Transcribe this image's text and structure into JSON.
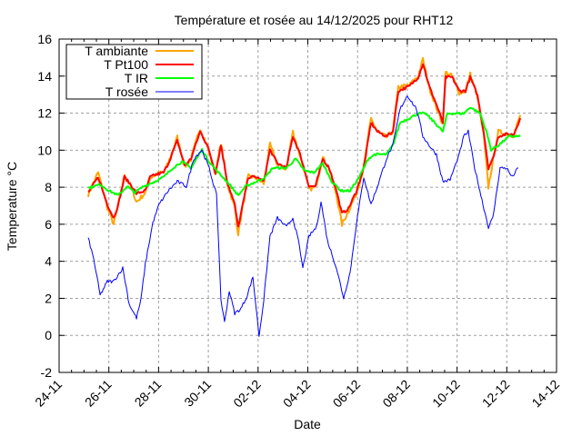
{
  "chart_data": {
    "type": "line",
    "title": "Température et rosée au 14/12/2025 pour RHT12",
    "xlabel": "Date",
    "ylabel": "Temperature °C",
    "x_unit": "days since 24-11 00:00",
    "xlim": [
      0,
      20
    ],
    "ylim": [
      -2,
      16
    ],
    "x_ticks": [
      "24-11",
      "26-11",
      "28-11",
      "30-11",
      "02-12",
      "04-12",
      "06-12",
      "08-12",
      "10-12",
      "12-12",
      "14-12"
    ],
    "y_ticks": [
      -2,
      0,
      2,
      4,
      6,
      8,
      10,
      12,
      14,
      16
    ],
    "grid": true,
    "legend_position": "top-left",
    "series": [
      {
        "name": "T ambiante",
        "color": "#ffa500",
        "points": [
          [
            1.17,
            7.6
          ],
          [
            1.57,
            8.8
          ],
          [
            1.94,
            6.9
          ],
          [
            2.19,
            6.0
          ],
          [
            2.38,
            7.0
          ],
          [
            2.63,
            8.7
          ],
          [
            2.93,
            7.9
          ],
          [
            3.11,
            7.2
          ],
          [
            3.47,
            7.7
          ],
          [
            3.66,
            8.5
          ],
          [
            3.91,
            8.7
          ],
          [
            4.2,
            8.8
          ],
          [
            4.39,
            9.3
          ],
          [
            4.75,
            10.7
          ],
          [
            5.05,
            9.1
          ],
          [
            5.3,
            9.5
          ],
          [
            5.67,
            11.2
          ],
          [
            5.96,
            10.2
          ],
          [
            6.29,
            8.7
          ],
          [
            6.51,
            10.4
          ],
          [
            6.76,
            8.2
          ],
          [
            7.06,
            6.9
          ],
          [
            7.2,
            5.5
          ],
          [
            7.35,
            6.7
          ],
          [
            7.61,
            8.6
          ],
          [
            7.93,
            8.5
          ],
          [
            8.23,
            8.2
          ],
          [
            8.48,
            10.3
          ],
          [
            8.78,
            9.2
          ],
          [
            9.14,
            9.0
          ],
          [
            9.4,
            11.0
          ],
          [
            9.69,
            9.7
          ],
          [
            10.05,
            7.9
          ],
          [
            10.31,
            8.0
          ],
          [
            10.6,
            9.6
          ],
          [
            10.86,
            9.0
          ],
          [
            11.15,
            7.6
          ],
          [
            11.37,
            6.0
          ],
          [
            11.63,
            6.7
          ],
          [
            11.96,
            7.7
          ],
          [
            12.25,
            9.1
          ],
          [
            12.54,
            11.7
          ],
          [
            12.8,
            11.0
          ],
          [
            13.16,
            10.7
          ],
          [
            13.42,
            11.0
          ],
          [
            13.64,
            13.4
          ],
          [
            14.08,
            13.5
          ],
          [
            14.44,
            14.0
          ],
          [
            14.63,
            14.9
          ],
          [
            14.88,
            13.4
          ],
          [
            15.17,
            12.3
          ],
          [
            15.43,
            11.4
          ],
          [
            15.54,
            14.2
          ],
          [
            15.8,
            14.0
          ],
          [
            16.09,
            13.1
          ],
          [
            16.34,
            13.2
          ],
          [
            16.53,
            14.1
          ],
          [
            16.82,
            12.9
          ],
          [
            17.07,
            10.8
          ],
          [
            17.26,
            8.0
          ],
          [
            17.44,
            9.4
          ],
          [
            17.66,
            11.0
          ],
          [
            17.92,
            10.9
          ],
          [
            18.28,
            10.8
          ],
          [
            18.54,
            11.9
          ]
        ]
      },
      {
        "name": "T Pt100",
        "color": "#ff0000",
        "points": [
          [
            1.17,
            7.71
          ],
          [
            1.57,
            8.55
          ],
          [
            1.94,
            7.07
          ],
          [
            2.19,
            6.34
          ],
          [
            2.38,
            7.07
          ],
          [
            2.63,
            8.55
          ],
          [
            2.93,
            8.05
          ],
          [
            3.11,
            7.66
          ],
          [
            3.47,
            7.81
          ],
          [
            3.66,
            8.55
          ],
          [
            3.91,
            8.69
          ],
          [
            4.2,
            8.79
          ],
          [
            4.39,
            9.28
          ],
          [
            4.75,
            10.51
          ],
          [
            5.05,
            9.18
          ],
          [
            5.3,
            9.53
          ],
          [
            5.67,
            11.0
          ],
          [
            5.96,
            10.26
          ],
          [
            6.29,
            8.79
          ],
          [
            6.51,
            10.26
          ],
          [
            6.76,
            8.3
          ],
          [
            7.06,
            7.07
          ],
          [
            7.2,
            5.85
          ],
          [
            7.35,
            6.83
          ],
          [
            7.61,
            8.55
          ],
          [
            7.93,
            8.55
          ],
          [
            8.23,
            8.3
          ],
          [
            8.48,
            10.02
          ],
          [
            8.78,
            9.28
          ],
          [
            9.14,
            9.04
          ],
          [
            9.4,
            10.75
          ],
          [
            9.69,
            9.77
          ],
          [
            10.05,
            8.05
          ],
          [
            10.31,
            8.05
          ],
          [
            10.6,
            9.53
          ],
          [
            10.86,
            9.04
          ],
          [
            11.15,
            7.81
          ],
          [
            11.37,
            6.58
          ],
          [
            11.63,
            6.83
          ],
          [
            11.96,
            7.81
          ],
          [
            12.25,
            9.04
          ],
          [
            12.54,
            11.49
          ],
          [
            12.8,
            11.0
          ],
          [
            13.16,
            10.75
          ],
          [
            13.42,
            11.0
          ],
          [
            13.64,
            13.2
          ],
          [
            14.08,
            13.45
          ],
          [
            14.44,
            13.94
          ],
          [
            14.63,
            14.68
          ],
          [
            14.88,
            13.45
          ],
          [
            15.17,
            12.47
          ],
          [
            15.43,
            11.49
          ],
          [
            15.54,
            13.94
          ],
          [
            15.8,
            13.94
          ],
          [
            16.09,
            13.2
          ],
          [
            16.34,
            13.2
          ],
          [
            16.53,
            13.94
          ],
          [
            16.82,
            12.96
          ],
          [
            17.07,
            11.0
          ],
          [
            17.26,
            9.04
          ],
          [
            17.44,
            9.53
          ],
          [
            17.66,
            10.75
          ],
          [
            17.92,
            10.85
          ],
          [
            18.28,
            10.85
          ],
          [
            18.54,
            11.73
          ]
        ]
      },
      {
        "name": "T IR",
        "color": "#00ff00",
        "points": [
          [
            1.17,
            7.96
          ],
          [
            1.65,
            8.15
          ],
          [
            2.01,
            7.81
          ],
          [
            2.38,
            7.56
          ],
          [
            2.74,
            8.05
          ],
          [
            3.03,
            7.71
          ],
          [
            3.4,
            8.05
          ],
          [
            3.84,
            8.3
          ],
          [
            4.2,
            8.55
          ],
          [
            4.57,
            9.04
          ],
          [
            4.94,
            9.38
          ],
          [
            5.3,
            9.04
          ],
          [
            5.74,
            10.02
          ],
          [
            6.03,
            9.38
          ],
          [
            6.4,
            8.79
          ],
          [
            6.76,
            8.3
          ],
          [
            7.2,
            7.56
          ],
          [
            7.5,
            8.05
          ],
          [
            7.93,
            8.3
          ],
          [
            8.3,
            8.55
          ],
          [
            8.59,
            9.04
          ],
          [
            9.14,
            9.04
          ],
          [
            9.51,
            9.53
          ],
          [
            9.87,
            8.89
          ],
          [
            10.24,
            8.79
          ],
          [
            10.6,
            9.28
          ],
          [
            10.97,
            8.3
          ],
          [
            11.33,
            7.81
          ],
          [
            11.7,
            7.81
          ],
          [
            12.07,
            8.55
          ],
          [
            12.43,
            9.53
          ],
          [
            12.69,
            9.77
          ],
          [
            13.16,
            9.77
          ],
          [
            13.42,
            10.26
          ],
          [
            13.71,
            11.49
          ],
          [
            14.08,
            11.73
          ],
          [
            14.44,
            11.98
          ],
          [
            14.73,
            11.98
          ],
          [
            15.1,
            11.49
          ],
          [
            15.43,
            11.0
          ],
          [
            15.61,
            11.98
          ],
          [
            15.9,
            11.98
          ],
          [
            16.27,
            11.98
          ],
          [
            16.53,
            12.32
          ],
          [
            16.93,
            11.98
          ],
          [
            17.18,
            11.0
          ],
          [
            17.37,
            10.02
          ],
          [
            17.66,
            10.26
          ],
          [
            18.1,
            10.75
          ],
          [
            18.54,
            10.75
          ]
        ]
      },
      {
        "name": "T rosée",
        "color": "#0000ff",
        "points": [
          [
            1.17,
            5.26
          ],
          [
            1.39,
            4.13
          ],
          [
            1.65,
            2.17
          ],
          [
            1.94,
            2.91
          ],
          [
            2.19,
            2.91
          ],
          [
            2.56,
            3.64
          ],
          [
            2.82,
            1.68
          ],
          [
            3.11,
            0.94
          ],
          [
            3.29,
            1.92
          ],
          [
            3.47,
            3.89
          ],
          [
            3.77,
            6.09
          ],
          [
            4.02,
            7.07
          ],
          [
            4.39,
            7.81
          ],
          [
            4.75,
            8.3
          ],
          [
            5.12,
            8.05
          ],
          [
            5.41,
            9.53
          ],
          [
            5.74,
            10.02
          ],
          [
            6.03,
            9.04
          ],
          [
            6.33,
            7.56
          ],
          [
            6.51,
            1.92
          ],
          [
            6.65,
            0.7
          ],
          [
            6.84,
            2.41
          ],
          [
            7.06,
            1.19
          ],
          [
            7.31,
            1.43
          ],
          [
            7.57,
            2.17
          ],
          [
            7.79,
            3.15
          ],
          [
            8.04,
            -0.03
          ],
          [
            8.23,
            1.92
          ],
          [
            8.48,
            5.36
          ],
          [
            8.78,
            6.34
          ],
          [
            9.14,
            5.85
          ],
          [
            9.4,
            6.34
          ],
          [
            9.62,
            5.11
          ],
          [
            9.8,
            3.64
          ],
          [
            10.05,
            5.36
          ],
          [
            10.35,
            5.85
          ],
          [
            10.53,
            7.22
          ],
          [
            10.79,
            5.11
          ],
          [
            11.15,
            3.64
          ],
          [
            11.44,
            2.02
          ],
          [
            11.7,
            3.4
          ],
          [
            11.96,
            6.09
          ],
          [
            12.25,
            8.55
          ],
          [
            12.54,
            7.07
          ],
          [
            12.8,
            8.05
          ],
          [
            13.16,
            9.53
          ],
          [
            13.42,
            10.26
          ],
          [
            13.71,
            12.22
          ],
          [
            14.0,
            12.96
          ],
          [
            14.37,
            12.22
          ],
          [
            14.63,
            10.75
          ],
          [
            14.88,
            10.26
          ],
          [
            15.17,
            9.77
          ],
          [
            15.43,
            8.3
          ],
          [
            15.72,
            8.4
          ],
          [
            16.09,
            9.77
          ],
          [
            16.27,
            10.75
          ],
          [
            16.45,
            11.0
          ],
          [
            16.71,
            9.04
          ],
          [
            17.0,
            7.32
          ],
          [
            17.26,
            5.85
          ],
          [
            17.44,
            6.34
          ],
          [
            17.73,
            9.04
          ],
          [
            17.99,
            9.04
          ],
          [
            18.21,
            8.55
          ],
          [
            18.46,
            9.04
          ]
        ]
      }
    ]
  }
}
